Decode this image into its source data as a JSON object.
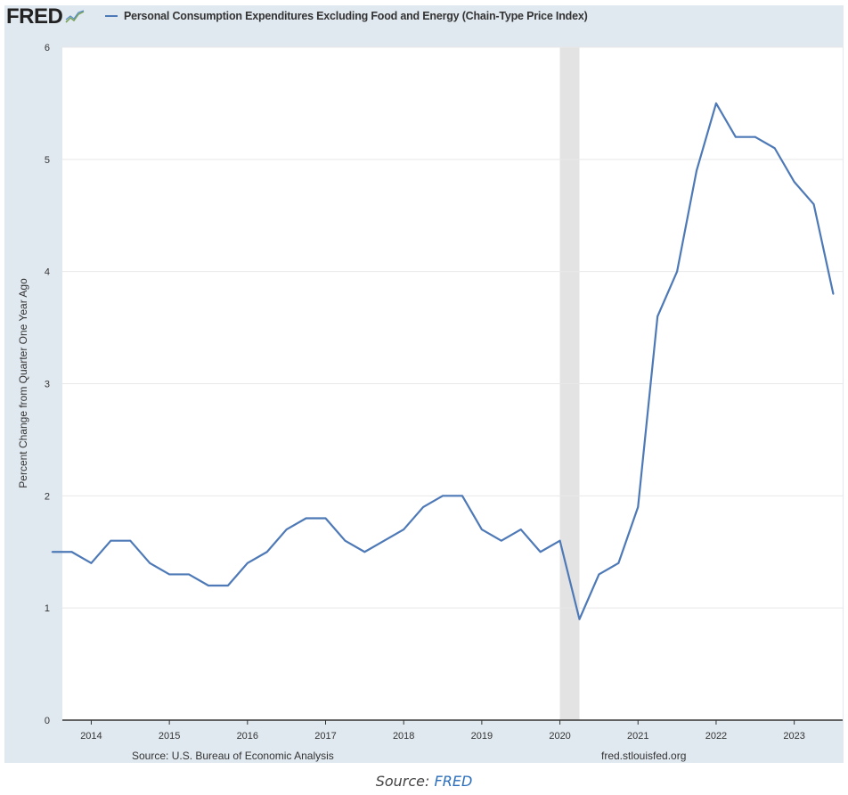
{
  "header": {
    "logo_text": "FRED",
    "logo_mark": "fred-graph-icon",
    "legend_label": "Personal Consumption Expenditures Excluding Food and Energy (Chain-Type Price Index)"
  },
  "footer": {
    "source": "Source: U.S. Bureau of Economic Analysis",
    "url": "fred.stlouisfed.org"
  },
  "caption": {
    "prefix": "Source:",
    "link": "FRED"
  },
  "colors": {
    "line": "#4e79b7",
    "background": "#e1e9f0",
    "plot": "#ffffff",
    "recession": "#e3e3e3",
    "link": "#2a6ebb"
  },
  "chart_data": {
    "type": "line",
    "title": "",
    "xlabel": "",
    "ylabel": "Percent Change from Quarter One Year Ago",
    "ylim": [
      0,
      6
    ],
    "yticks": [
      0,
      1,
      2,
      3,
      4,
      5,
      6
    ],
    "xlim": [
      2013.63,
      2023.62
    ],
    "xticks": [
      "2014",
      "2015",
      "2016",
      "2017",
      "2018",
      "2019",
      "2020",
      "2021",
      "2022",
      "2023"
    ],
    "grid": true,
    "legend_position": "top",
    "recession_shading": [
      {
        "start": "2020-01",
        "end": "2020-04"
      }
    ],
    "series": [
      {
        "name": "Personal Consumption Expenditures Excluding Food and Energy (Chain-Type Price Index)",
        "x": [
          "2013-07",
          "2013-10",
          "2014-01",
          "2014-04",
          "2014-07",
          "2014-10",
          "2015-01",
          "2015-04",
          "2015-07",
          "2015-10",
          "2016-01",
          "2016-04",
          "2016-07",
          "2016-10",
          "2017-01",
          "2017-04",
          "2017-07",
          "2017-10",
          "2018-01",
          "2018-04",
          "2018-07",
          "2018-10",
          "2019-01",
          "2019-04",
          "2019-07",
          "2019-10",
          "2020-01",
          "2020-04",
          "2020-07",
          "2020-10",
          "2021-01",
          "2021-04",
          "2021-07",
          "2021-10",
          "2022-01",
          "2022-04",
          "2022-07",
          "2022-10",
          "2023-01",
          "2023-04",
          "2023-07"
        ],
        "values": [
          1.5,
          1.5,
          1.4,
          1.6,
          1.6,
          1.4,
          1.3,
          1.3,
          1.2,
          1.2,
          1.4,
          1.5,
          1.7,
          1.8,
          1.8,
          1.6,
          1.5,
          1.6,
          1.7,
          1.9,
          2.0,
          2.0,
          1.7,
          1.6,
          1.7,
          1.5,
          1.6,
          0.9,
          1.3,
          1.4,
          1.9,
          3.6,
          4.0,
          4.9,
          5.5,
          5.2,
          5.2,
          5.1,
          4.8,
          4.6,
          3.8
        ]
      }
    ]
  }
}
